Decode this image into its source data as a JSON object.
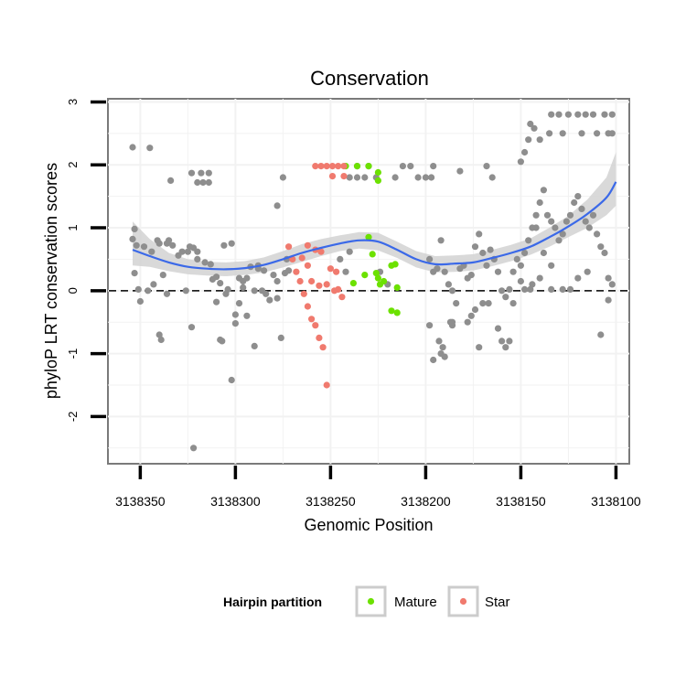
{
  "chart_data": {
    "type": "scatter",
    "title": "Conservation",
    "xlabel": "Genomic Position",
    "ylabel": "phyloP LRT conservation scores",
    "x_reversed": true,
    "xlim": [
      3138367,
      3138093
    ],
    "ylim": [
      -2.75,
      3.05
    ],
    "x_ticks": [
      3138350,
      3138300,
      3138250,
      3138200,
      3138150,
      3138100
    ],
    "x_tick_labels": [
      "3138350",
      "3138300",
      "3138250",
      "3138200",
      "3138150",
      "3138100"
    ],
    "y_ticks": [
      -2,
      -1,
      0,
      1,
      2,
      3
    ],
    "y_tick_labels": [
      "-2",
      "-1",
      "0",
      "1",
      "2",
      "3"
    ],
    "grid": true,
    "reference_line": {
      "y": 0,
      "style": "dashed"
    },
    "legend": {
      "title": "Hairpin partition",
      "position": "bottom",
      "entries": [
        {
          "label": "Mature",
          "color": "#6ce100"
        },
        {
          "label": "Star",
          "color": "#f07a6e"
        }
      ]
    },
    "colors": {
      "other": "#8e8e8e",
      "mature": "#6ce100",
      "star": "#f07a6e",
      "smooth": "#3b69e8",
      "band": "#d2d2d2"
    },
    "series": [
      {
        "group": "other",
        "points": [
          [
            3138354,
            2.28
          ],
          [
            3138345,
            2.27
          ],
          [
            3138353,
            0.98
          ],
          [
            3138354,
            0.82
          ],
          [
            3138352,
            0.72
          ],
          [
            3138348,
            0.7
          ],
          [
            3138344,
            0.62
          ],
          [
            3138340,
            0.75
          ],
          [
            3138336,
            0.75
          ],
          [
            3138333,
            0.72
          ],
          [
            3138353,
            0.28
          ],
          [
            3138351,
            0.02
          ],
          [
            3138350,
            -0.17
          ],
          [
            3138346,
            0.0
          ],
          [
            3138343,
            0.1
          ],
          [
            3138341,
            0.8
          ],
          [
            3138339,
            -0.78
          ],
          [
            3138340,
            -0.7
          ],
          [
            3138338,
            0.25
          ],
          [
            3138336,
            -0.05
          ],
          [
            3138335,
            0.8
          ],
          [
            3138334,
            1.75
          ],
          [
            3138330,
            0.56
          ],
          [
            3138328,
            0.62
          ],
          [
            3138325,
            0.62
          ],
          [
            3138326,
            0.0
          ],
          [
            3138324,
            0.7
          ],
          [
            3138323,
            1.87
          ],
          [
            3138318,
            1.87
          ],
          [
            3138314,
            1.87
          ],
          [
            3138320,
            1.72
          ],
          [
            3138317,
            1.72
          ],
          [
            3138314,
            1.72
          ],
          [
            3138320,
            0.62
          ],
          [
            3138322,
            0.68
          ],
          [
            3138320,
            0.5
          ],
          [
            3138316,
            0.45
          ],
          [
            3138313,
            0.42
          ],
          [
            3138310,
            0.22
          ],
          [
            3138312,
            0.18
          ],
          [
            3138308,
            0.12
          ],
          [
            3138305,
            -0.05
          ],
          [
            3138304,
            0.02
          ],
          [
            3138310,
            -0.18
          ],
          [
            3138308,
            -0.78
          ],
          [
            3138307,
            -0.8
          ],
          [
            3138323,
            -0.58
          ],
          [
            3138322,
            -2.5
          ],
          [
            3138302,
            -1.42
          ],
          [
            3138300,
            -0.52
          ],
          [
            3138298,
            -0.2
          ],
          [
            3138296,
            0.05
          ],
          [
            3138294,
            0.2
          ],
          [
            3138292,
            0.38
          ],
          [
            3138290,
            0.0
          ],
          [
            3138288,
            0.4
          ],
          [
            3138286,
            0.0
          ],
          [
            3138284,
            -0.05
          ],
          [
            3138282,
            -0.15
          ],
          [
            3138280,
            0.25
          ],
          [
            3138278,
            0.15
          ],
          [
            3138278,
            -0.12
          ],
          [
            3138276,
            -0.75
          ],
          [
            3138274,
            0.28
          ],
          [
            3138272,
            0.32
          ],
          [
            3138285,
            0.32
          ],
          [
            3138290,
            -0.88
          ],
          [
            3138278,
            1.35
          ],
          [
            3138275,
            1.8
          ],
          [
            3138273,
            0.5
          ],
          [
            3138302,
            0.75
          ],
          [
            3138306,
            0.72
          ],
          [
            3138288,
            0.35
          ],
          [
            3138298,
            0.2
          ],
          [
            3138296,
            0.15
          ],
          [
            3138300,
            -0.38
          ],
          [
            3138294,
            -0.4
          ],
          [
            3138245,
            0.5
          ],
          [
            3138242,
            0.3
          ],
          [
            3138240,
            0.62
          ],
          [
            3138240,
            1.8
          ],
          [
            3138236,
            1.8
          ],
          [
            3138232,
            1.8
          ],
          [
            3138226,
            1.8
          ],
          [
            3138230,
            1.98
          ],
          [
            3138236,
            1.98
          ],
          [
            3138224,
            0.3
          ],
          [
            3138220,
            0.1
          ],
          [
            3138216,
            1.8
          ],
          [
            3138212,
            1.98
          ],
          [
            3138208,
            1.98
          ],
          [
            3138204,
            1.8
          ],
          [
            3138200,
            1.8
          ],
          [
            3138197,
            1.8
          ],
          [
            3138196,
            1.98
          ],
          [
            3138198,
            0.5
          ],
          [
            3138196,
            0.3
          ],
          [
            3138194,
            0.35
          ],
          [
            3138192,
            0.8
          ],
          [
            3138190,
            0.3
          ],
          [
            3138188,
            0.1
          ],
          [
            3138186,
            0.0
          ],
          [
            3138184,
            -0.2
          ],
          [
            3138182,
            0.35
          ],
          [
            3138180,
            0.4
          ],
          [
            3138178,
            0.2
          ],
          [
            3138176,
            0.25
          ],
          [
            3138174,
            0.7
          ],
          [
            3138172,
            0.9
          ],
          [
            3138170,
            0.6
          ],
          [
            3138168,
            0.4
          ],
          [
            3138166,
            0.65
          ],
          [
            3138164,
            0.5
          ],
          [
            3138162,
            0.3
          ],
          [
            3138160,
            0.0
          ],
          [
            3138158,
            -0.1
          ],
          [
            3138156,
            0.02
          ],
          [
            3138154,
            0.3
          ],
          [
            3138152,
            0.5
          ],
          [
            3138150,
            0.4
          ],
          [
            3138148,
            0.6
          ],
          [
            3138146,
            0.8
          ],
          [
            3138144,
            1.0
          ],
          [
            3138142,
            1.2
          ],
          [
            3138140,
            1.4
          ],
          [
            3138138,
            1.6
          ],
          [
            3138136,
            1.2
          ],
          [
            3138134,
            1.1
          ],
          [
            3138132,
            1.0
          ],
          [
            3138130,
            0.8
          ],
          [
            3138128,
            0.9
          ],
          [
            3138126,
            1.1
          ],
          [
            3138124,
            1.2
          ],
          [
            3138122,
            1.4
          ],
          [
            3138120,
            1.5
          ],
          [
            3138118,
            1.3
          ],
          [
            3138116,
            1.1
          ],
          [
            3138114,
            1.0
          ],
          [
            3138112,
            1.2
          ],
          [
            3138110,
            0.9
          ],
          [
            3138108,
            0.7
          ],
          [
            3138106,
            0.6
          ],
          [
            3138104,
            0.2
          ],
          [
            3138102,
            0.1
          ],
          [
            3138198,
            -0.55
          ],
          [
            3138196,
            -1.1
          ],
          [
            3138193,
            -0.8
          ],
          [
            3138191,
            -0.9
          ],
          [
            3138190,
            -1.05
          ],
          [
            3138192,
            -1.0
          ],
          [
            3138187,
            -0.5
          ],
          [
            3138186,
            -0.55
          ],
          [
            3138178,
            -0.5
          ],
          [
            3138176,
            -0.4
          ],
          [
            3138174,
            -0.3
          ],
          [
            3138172,
            -0.9
          ],
          [
            3138167,
            -0.2
          ],
          [
            3138162,
            -0.6
          ],
          [
            3138160,
            -0.8
          ],
          [
            3138158,
            -0.9
          ],
          [
            3138156,
            -0.8
          ],
          [
            3138154,
            -0.2
          ],
          [
            3138186,
            -0.5
          ],
          [
            3138148,
            0.02
          ],
          [
            3138145,
            0.02
          ],
          [
            3138134,
            0.02
          ],
          [
            3138128,
            0.02
          ],
          [
            3138170,
            -0.2
          ],
          [
            3138142,
            1.0
          ],
          [
            3138138,
            0.6
          ],
          [
            3138134,
            0.4
          ],
          [
            3138140,
            0.2
          ],
          [
            3138144,
            0.1
          ],
          [
            3138150,
            0.15
          ],
          [
            3138108,
            -0.7
          ],
          [
            3138104,
            -0.15
          ],
          [
            3138120,
            0.2
          ],
          [
            3138124,
            0.02
          ],
          [
            3138115,
            0.3
          ],
          [
            3138182,
            1.9
          ],
          [
            3138168,
            1.98
          ],
          [
            3138165,
            1.8
          ],
          [
            3138150,
            2.05
          ],
          [
            3138148,
            2.2
          ],
          [
            3138146,
            2.4
          ],
          [
            3138143,
            2.58
          ],
          [
            3138140,
            2.4
          ],
          [
            3138145,
            2.65
          ],
          [
            3138135,
            2.5
          ],
          [
            3138130,
            2.8
          ],
          [
            3138128,
            2.5
          ],
          [
            3138125,
            2.8
          ],
          [
            3138120,
            2.8
          ],
          [
            3138118,
            2.5
          ],
          [
            3138116,
            2.8
          ],
          [
            3138112,
            2.8
          ],
          [
            3138110,
            2.5
          ],
          [
            3138106,
            2.8
          ],
          [
            3138102,
            2.8
          ],
          [
            3138104,
            2.5
          ],
          [
            3138102,
            2.5
          ],
          [
            3138134,
            2.8
          ]
        ]
      },
      {
        "group": "mature",
        "points": [
          [
            3138242,
            1.98
          ],
          [
            3138236,
            1.98
          ],
          [
            3138230,
            1.98
          ],
          [
            3138225,
            1.88
          ],
          [
            3138225,
            1.75
          ],
          [
            3138230,
            0.85
          ],
          [
            3138228,
            0.58
          ],
          [
            3138238,
            0.12
          ],
          [
            3138225,
            0.2
          ],
          [
            3138222,
            0.15
          ],
          [
            3138218,
            0.4
          ],
          [
            3138216,
            0.42
          ],
          [
            3138215,
            0.05
          ],
          [
            3138226,
            0.28
          ],
          [
            3138232,
            0.25
          ],
          [
            3138218,
            -0.32
          ],
          [
            3138215,
            -0.35
          ],
          [
            3138224,
            0.1
          ]
        ]
      },
      {
        "group": "star",
        "points": [
          [
            3138258,
            1.98
          ],
          [
            3138255,
            1.98
          ],
          [
            3138252,
            1.98
          ],
          [
            3138249,
            1.98
          ],
          [
            3138246,
            1.98
          ],
          [
            3138243,
            1.98
          ],
          [
            3138249,
            1.82
          ],
          [
            3138243,
            1.82
          ],
          [
            3138262,
            0.72
          ],
          [
            3138258,
            0.65
          ],
          [
            3138255,
            0.62
          ],
          [
            3138250,
            0.35
          ],
          [
            3138247,
            0.3
          ],
          [
            3138262,
            0.4
          ],
          [
            3138265,
            0.52
          ],
          [
            3138272,
            0.7
          ],
          [
            3138270,
            0.5
          ],
          [
            3138268,
            0.3
          ],
          [
            3138266,
            0.15
          ],
          [
            3138264,
            -0.05
          ],
          [
            3138262,
            -0.25
          ],
          [
            3138260,
            -0.45
          ],
          [
            3138258,
            -0.55
          ],
          [
            3138256,
            -0.75
          ],
          [
            3138254,
            -0.9
          ],
          [
            3138252,
            -1.5
          ],
          [
            3138248,
            0.0
          ],
          [
            3138246,
            0.02
          ],
          [
            3138244,
            -0.1
          ],
          [
            3138260,
            0.15
          ],
          [
            3138256,
            0.08
          ],
          [
            3138252,
            0.1
          ]
        ]
      }
    ],
    "smooth": {
      "x": [
        3138354,
        3138345,
        3138335,
        3138325,
        3138315,
        3138305,
        3138295,
        3138285,
        3138275,
        3138265,
        3138255,
        3138245,
        3138235,
        3138225,
        3138215,
        3138205,
        3138195,
        3138185,
        3138175,
        3138165,
        3138155,
        3138145,
        3138135,
        3138125,
        3138115,
        3138105,
        3138100
      ],
      "y": [
        0.65,
        0.55,
        0.45,
        0.38,
        0.35,
        0.34,
        0.36,
        0.41,
        0.5,
        0.6,
        0.68,
        0.75,
        0.8,
        0.78,
        0.65,
        0.5,
        0.42,
        0.43,
        0.45,
        0.52,
        0.6,
        0.7,
        0.85,
        1.02,
        1.22,
        1.48,
        1.73
      ],
      "lower": [
        0.4,
        0.38,
        0.31,
        0.26,
        0.24,
        0.23,
        0.25,
        0.29,
        0.37,
        0.46,
        0.55,
        0.63,
        0.67,
        0.64,
        0.52,
        0.37,
        0.29,
        0.3,
        0.32,
        0.39,
        0.47,
        0.57,
        0.7,
        0.85,
        1.0,
        1.2,
        1.35
      ],
      "upper": [
        1.1,
        0.82,
        0.6,
        0.5,
        0.46,
        0.45,
        0.47,
        0.53,
        0.63,
        0.74,
        0.82,
        0.88,
        0.93,
        0.92,
        0.78,
        0.63,
        0.55,
        0.56,
        0.58,
        0.65,
        0.73,
        0.83,
        1.0,
        1.19,
        1.45,
        1.8,
        2.2
      ]
    }
  }
}
